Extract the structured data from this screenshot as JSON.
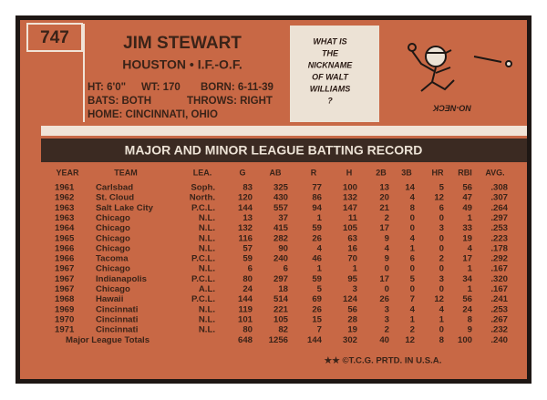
{
  "card_number": "747",
  "player": {
    "name": "JIM STEWART",
    "team_position": "HOUSTON • I.F.-O.F.",
    "height": "HT: 6'0\"",
    "weight": "WT: 170",
    "born": "BORN: 6-11-39",
    "bats": "BATS: BOTH",
    "throws": "THROWS: RIGHT",
    "home": "HOME: CINCINNATI, OHIO"
  },
  "cartoon": {
    "question_lines": [
      "WHAT IS",
      "THE",
      "NICKNAME",
      "OF WALT",
      "WILLIAMS",
      "?"
    ],
    "answer": "NO-NECK"
  },
  "record": {
    "title": "MAJOR AND MINOR LEAGUE BATTING RECORD",
    "columns": [
      "YEAR",
      "TEAM",
      "LEA.",
      "G",
      "AB",
      "R",
      "H",
      "2B",
      "3B",
      "HR",
      "RBI",
      "AVG."
    ],
    "rows": [
      [
        "1961",
        "Carlsbad",
        "Soph.",
        "83",
        "325",
        "77",
        "100",
        "13",
        "14",
        "5",
        "56",
        ".308"
      ],
      [
        "1962",
        "St. Cloud",
        "North.",
        "120",
        "430",
        "86",
        "132",
        "20",
        "4",
        "12",
        "47",
        ".307"
      ],
      [
        "1963",
        "Salt Lake City",
        "P.C.L.",
        "144",
        "557",
        "94",
        "147",
        "21",
        "8",
        "6",
        "49",
        ".264"
      ],
      [
        "1963",
        "Chicago",
        "N.L.",
        "13",
        "37",
        "1",
        "11",
        "2",
        "0",
        "0",
        "1",
        ".297"
      ],
      [
        "1964",
        "Chicago",
        "N.L.",
        "132",
        "415",
        "59",
        "105",
        "17",
        "0",
        "3",
        "33",
        ".253"
      ],
      [
        "1965",
        "Chicago",
        "N.L.",
        "116",
        "282",
        "26",
        "63",
        "9",
        "4",
        "0",
        "19",
        ".223"
      ],
      [
        "1966",
        "Chicago",
        "N.L.",
        "57",
        "90",
        "4",
        "16",
        "4",
        "1",
        "0",
        "4",
        ".178"
      ],
      [
        "1966",
        "Tacoma",
        "P.C.L.",
        "59",
        "240",
        "46",
        "70",
        "9",
        "6",
        "2",
        "17",
        ".292"
      ],
      [
        "1967",
        "Chicago",
        "N.L.",
        "6",
        "6",
        "1",
        "1",
        "0",
        "0",
        "0",
        "1",
        ".167"
      ],
      [
        "1967",
        "Indianapolis",
        "P.C.L.",
        "80",
        "297",
        "59",
        "95",
        "17",
        "5",
        "3",
        "34",
        ".320"
      ],
      [
        "1967",
        "Chicago",
        "A.L.",
        "24",
        "18",
        "5",
        "3",
        "0",
        "0",
        "0",
        "1",
        ".167"
      ],
      [
        "1968",
        "Hawaii",
        "P.C.L.",
        "144",
        "514",
        "69",
        "124",
        "26",
        "7",
        "12",
        "56",
        ".241"
      ],
      [
        "1969",
        "Cincinnati",
        "N.L.",
        "119",
        "221",
        "26",
        "56",
        "3",
        "4",
        "4",
        "24",
        ".253"
      ],
      [
        "1970",
        "Cincinnati",
        "N.L.",
        "101",
        "105",
        "15",
        "28",
        "3",
        "1",
        "1",
        "8",
        ".267"
      ],
      [
        "1971",
        "Cincinnati",
        "N.L.",
        "80",
        "82",
        "7",
        "19",
        "2",
        "2",
        "0",
        "9",
        ".232"
      ]
    ],
    "totals": {
      "label": "Major League Totals",
      "values": [
        "648",
        "1256",
        "144",
        "302",
        "40",
        "12",
        "8",
        "100",
        ".240"
      ]
    }
  },
  "footer": "★★ ©T.C.G. PRTD. IN U.S.A."
}
